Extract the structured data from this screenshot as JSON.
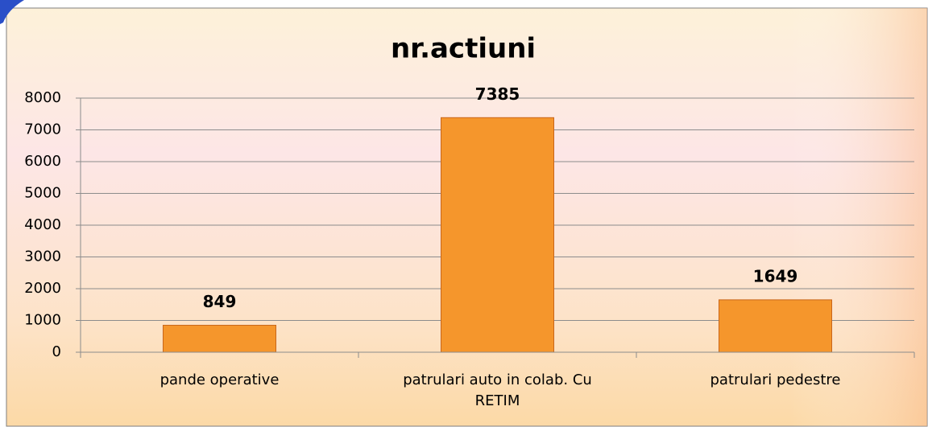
{
  "chart_data": {
    "type": "bar",
    "title": "nr.actiuni",
    "categories": [
      "pande operative",
      "patrulari auto in colab. Cu RETIM",
      "patrulari pedestre"
    ],
    "values": [
      849,
      7385,
      1649
    ],
    "color": "#f5962c",
    "ylim": [
      0,
      8000
    ],
    "yticks": [
      0,
      1000,
      2000,
      3000,
      4000,
      5000,
      6000,
      7000,
      8000
    ],
    "grid": true
  }
}
